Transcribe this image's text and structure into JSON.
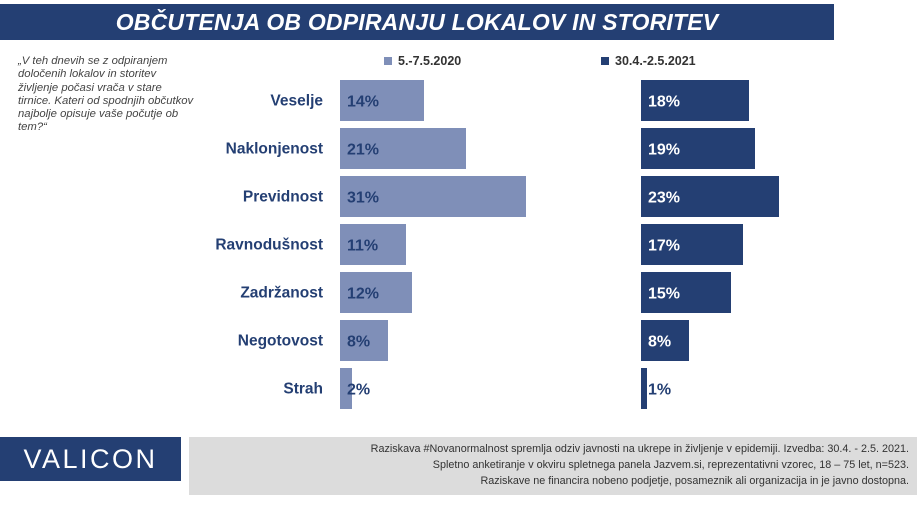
{
  "title": "OBČUTENJA OB ODPIRANJU LOKALOV IN STORITEV",
  "question": "„V teh dnevih se z odpiranjem določenih lokalov in storitev življenje počasi vrača v stare tirnice. Kateri od spodnjih občutkov najbolje opisuje vaše počutje ob tem?“",
  "colors": {
    "title_bg": "#243f73",
    "series1": "#7f8fb8",
    "series2": "#243f73",
    "footer_bg": "#dcdcdc"
  },
  "chart_data": {
    "type": "bar",
    "orientation": "horizontal",
    "categories": [
      "Veselje",
      "Naklonjenost",
      "Previdnost",
      "Ravnodušnost",
      "Zadržanost",
      "Negotovost",
      "Strah"
    ],
    "series": [
      {
        "name": "5.-7.5.2020",
        "values": [
          14,
          21,
          31,
          11,
          12,
          8,
          2
        ],
        "labels": [
          "14%",
          "21%",
          "31%",
          "11%",
          "12%",
          "8%",
          "2%"
        ]
      },
      {
        "name": "30.4.-2.5.2021",
        "values": [
          18,
          19,
          23,
          17,
          15,
          8,
          1
        ],
        "labels": [
          "18%",
          "19%",
          "23%",
          "17%",
          "15%",
          "8%",
          "1%"
        ]
      }
    ],
    "unit": "%",
    "legend": "top"
  },
  "footer": {
    "brand": "VALICON",
    "lines": [
      "Raziskava #Novanormalnost spremlja odziv javnosti na ukrepe in življenje v epidemiji. Izvedba: 30.4. - 2.5. 2021.",
      "Spletno anketiranje v okviru spletnega panela Jazvem.si, reprezentativni vzorec, 18 – 75 let, n=523.",
      "Raziskave ne financira nobeno podjetje, posameznik ali organizacija in je javno dostopna."
    ]
  }
}
